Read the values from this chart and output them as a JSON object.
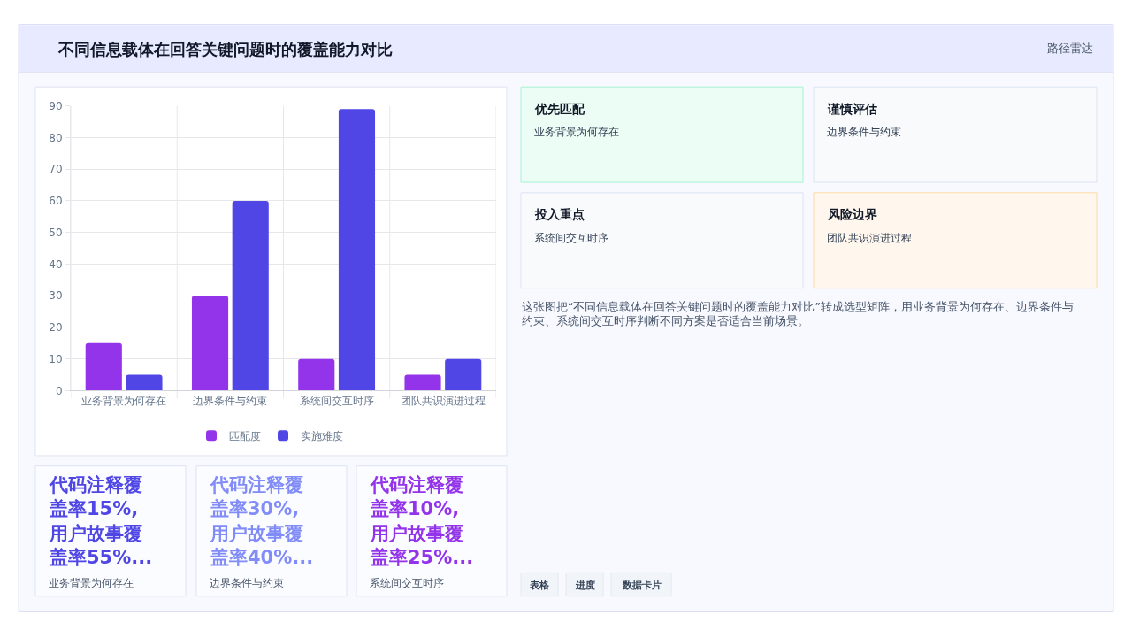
{
  "chart_data": [
    {
      "type": "bar",
      "title": "不同信息载体在回答关键问题时的覆盖能力对比",
      "categories": [
        "业务背景为何存在",
        "边界条件与约束",
        "系统间交互时序",
        "团队共识演进过程"
      ],
      "series": [
        {
          "name": "匹配度",
          "color": "#9333ea",
          "values": [
            15,
            30,
            10,
            5
          ]
        },
        {
          "name": "实施难度",
          "color": "#4f46e5",
          "values": [
            5,
            60,
            89,
            10
          ]
        }
      ],
      "ylim": [
        0,
        90
      ],
      "yticks": [
        0,
        10,
        20,
        30,
        40,
        50,
        60,
        70,
        80,
        90
      ],
      "grid": true,
      "legend": "bottom"
    },
    {
      "type": "other",
      "title": "路径雷达",
      "annotations": [
        "优先匹配",
        "业务背景为何存在",
        "谨慎评估",
        "边界条件与约束",
        "投入重点",
        "系统间交互时序",
        "风险边界",
        "团队共识演进过程",
        "这张图把“不同信息载体在回答关键问题时的覆盖能力对比”转成选型矩阵，用业务背景为何存在、边界条件与约束、系统间交互时序判断不同方案是否适合当前场景。",
        "代码注释覆盖率15%,用户故事覆盖率55%...",
        "业务背景为何存在",
        "代码注释覆盖率30%,用户故事覆盖率40%...",
        "边界条件与约束",
        "代码注释覆盖率10%,用户故事覆盖率25%...",
        "系统间交互时序",
        "表格",
        "进度",
        "数据卡片"
      ]
    }
  ]
}
